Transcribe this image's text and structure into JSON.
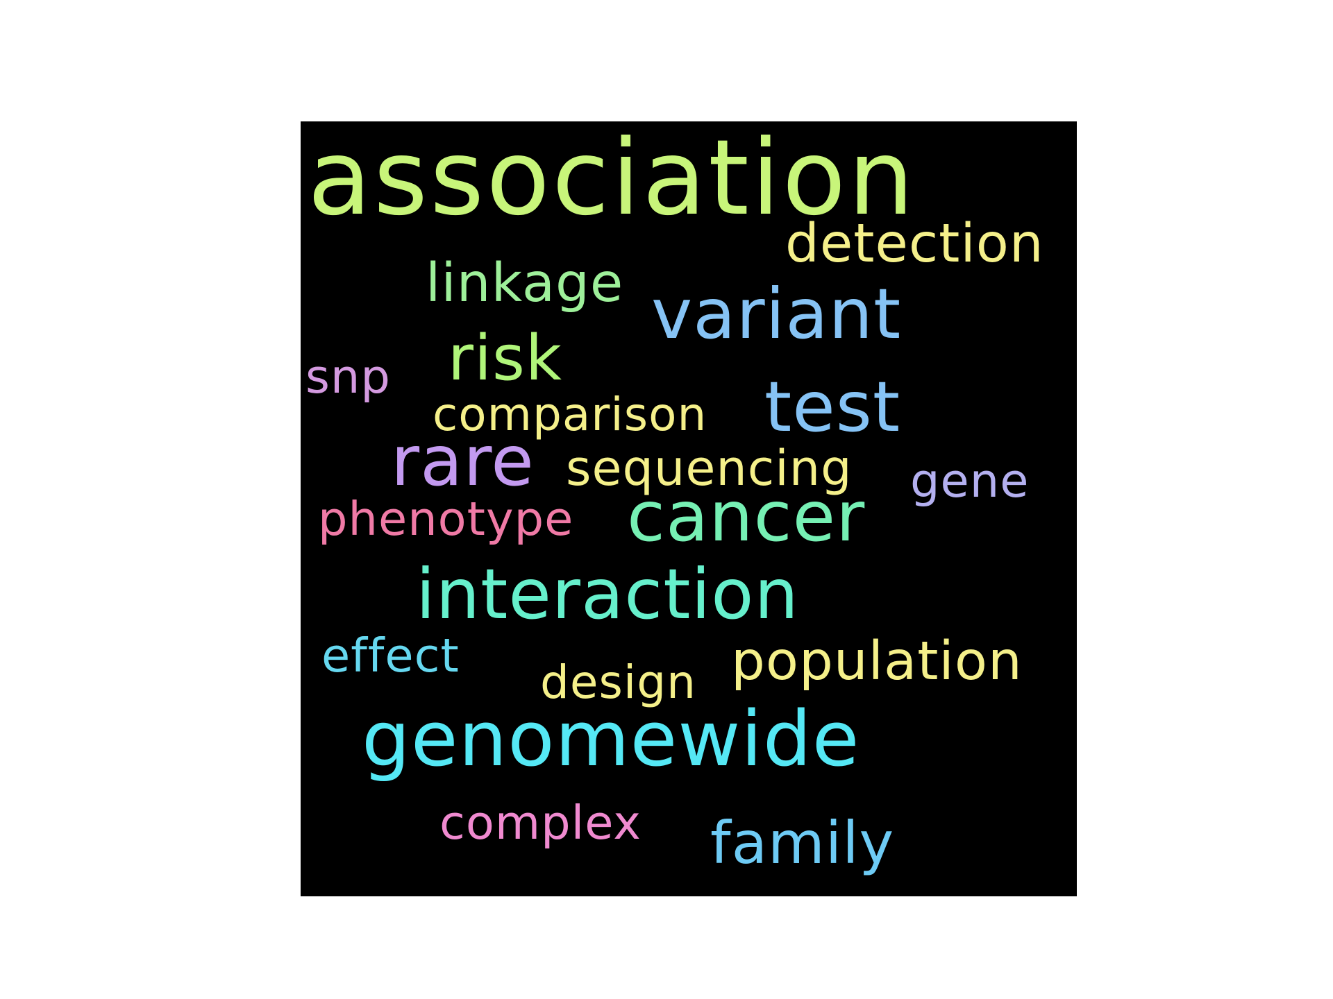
{
  "wordcloud": {
    "background_color": "#000000",
    "words": [
      {
        "key": "association",
        "text": "association",
        "color": "#c8f57a"
      },
      {
        "key": "detection",
        "text": "detection",
        "color": "#f5f08a"
      },
      {
        "key": "linkage",
        "text": "linkage",
        "color": "#9ef09a"
      },
      {
        "key": "variant",
        "text": "variant",
        "color": "#86c3f5"
      },
      {
        "key": "risk",
        "text": "risk",
        "color": "#b0f57a"
      },
      {
        "key": "snp",
        "text": "snp",
        "color": "#d49ae0"
      },
      {
        "key": "comparison",
        "text": "comparison",
        "color": "#f5f08a"
      },
      {
        "key": "test",
        "text": "test",
        "color": "#86c3f5"
      },
      {
        "key": "rare",
        "text": "rare",
        "color": "#c39af0"
      },
      {
        "key": "sequencing",
        "text": "sequencing",
        "color": "#f5f08a"
      },
      {
        "key": "gene",
        "text": "gene",
        "color": "#b4b0f0"
      },
      {
        "key": "phenotype",
        "text": "phenotype",
        "color": "#f07aa6"
      },
      {
        "key": "cancer",
        "text": "cancer",
        "color": "#76f0b4"
      },
      {
        "key": "interaction",
        "text": "interaction",
        "color": "#66f0cc"
      },
      {
        "key": "effect",
        "text": "effect",
        "color": "#66d8f0"
      },
      {
        "key": "population",
        "text": "population",
        "color": "#f5f08a"
      },
      {
        "key": "design",
        "text": "design",
        "color": "#f5f08a"
      },
      {
        "key": "genomewide",
        "text": "genomewide",
        "color": "#55e8f5"
      },
      {
        "key": "complex",
        "text": "complex",
        "color": "#f08ad0"
      },
      {
        "key": "family",
        "text": "family",
        "color": "#6ecbf5"
      }
    ]
  }
}
